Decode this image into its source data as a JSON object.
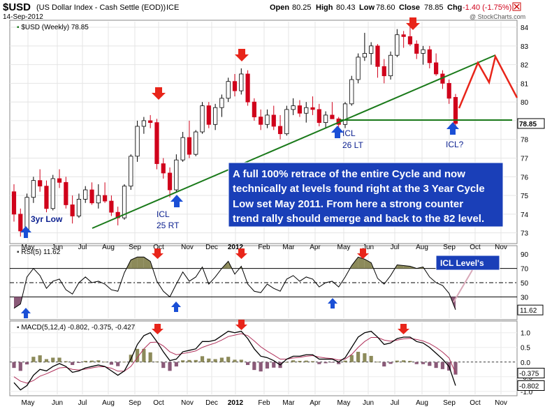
{
  "header": {
    "title": "$USD",
    "subtitle": "(US Dollar Index - Cash Settle (EOD))",
    "exchange": "ICE",
    "date": "14-Sep-2012",
    "open_label": "Open",
    "open": "80.25",
    "high_label": "High",
    "high": "80.43",
    "low_label": "Low",
    "low": "78.60",
    "close_label": "Close",
    "close": "78.85",
    "chg_label": "Chg",
    "chg": "-1.40 (-1.75%)",
    "watermark": "@ StockCharts.com"
  },
  "colors": {
    "up": "#ffffff",
    "down": "#d0021b",
    "outline": "#000000",
    "trend": "#1a7a1a",
    "arrow_down": "#e8251a",
    "arrow_up": "#1a4fd6",
    "forecast": "#e8251a",
    "note_bg": "#1a3fb8",
    "hist_pos": "#8c8a5a",
    "hist_neg": "#8a5a78"
  },
  "chart_data": [
    {
      "type": "candlestick",
      "title": "$USD (Weekly) 78.85",
      "ylim": [
        72.5,
        84.3
      ],
      "y_ticks": [
        "73",
        "74",
        "75",
        "76",
        "77",
        "78",
        "79",
        "80",
        "81",
        "82",
        "83",
        "84"
      ],
      "last_value_label": "78.85",
      "x_labels": [
        "May",
        "Jun",
        "Jul",
        "Aug",
        "Sep",
        "Oct",
        "Nov",
        "Dec",
        "2012",
        "Feb",
        "Mar",
        "Apr",
        "May",
        "Jun",
        "Jul",
        "Aug",
        "Sep",
        "Oct",
        "Nov"
      ],
      "ohlc": [
        [
          75.2,
          75.6,
          73.6,
          74.0
        ],
        [
          74.0,
          74.3,
          72.8,
          73.1
        ],
        [
          73.1,
          75.1,
          73.0,
          74.9
        ],
        [
          74.9,
          76.0,
          74.6,
          75.8
        ],
        [
          75.8,
          76.4,
          75.2,
          75.5
        ],
        [
          75.5,
          75.8,
          74.1,
          74.3
        ],
        [
          74.3,
          76.1,
          74.2,
          75.9
        ],
        [
          75.9,
          76.4,
          75.4,
          75.7
        ],
        [
          75.7,
          76.0,
          74.3,
          74.5
        ],
        [
          74.5,
          75.0,
          73.5,
          73.9
        ],
        [
          73.9,
          75.1,
          73.8,
          74.8
        ],
        [
          74.8,
          75.5,
          74.6,
          75.3
        ],
        [
          75.3,
          75.7,
          74.5,
          74.6
        ],
        [
          74.6,
          75.6,
          74.3,
          75.0
        ],
        [
          75.0,
          75.7,
          74.6,
          74.7
        ],
        [
          74.7,
          75.0,
          73.9,
          74.1
        ],
        [
          74.1,
          74.4,
          73.4,
          73.8
        ],
        [
          73.8,
          75.6,
          73.7,
          75.5
        ],
        [
          75.5,
          77.2,
          75.3,
          77.1
        ],
        [
          77.1,
          79.0,
          76.8,
          78.7
        ],
        [
          78.7,
          79.2,
          78.3,
          79.0
        ],
        [
          79.0,
          79.3,
          78.6,
          78.9
        ],
        [
          78.9,
          79.1,
          76.4,
          76.7
        ],
        [
          76.7,
          77.0,
          75.9,
          76.2
        ],
        [
          76.2,
          76.5,
          74.9,
          75.3
        ],
        [
          75.3,
          77.2,
          75.2,
          76.9
        ],
        [
          76.9,
          78.4,
          76.8,
          78.1
        ],
        [
          78.1,
          79.0,
          77.0,
          77.2
        ],
        [
          77.2,
          78.5,
          77.1,
          78.4
        ],
        [
          78.4,
          80.0,
          78.3,
          79.8
        ],
        [
          79.8,
          80.0,
          78.6,
          78.8
        ],
        [
          78.8,
          79.9,
          78.5,
          79.7
        ],
        [
          79.7,
          80.4,
          79.2,
          80.2
        ],
        [
          80.2,
          81.3,
          80.0,
          81.1
        ],
        [
          81.1,
          81.5,
          80.3,
          80.6
        ],
        [
          80.6,
          81.8,
          80.4,
          81.5
        ],
        [
          81.5,
          81.7,
          79.8,
          80.0
        ],
        [
          80.0,
          80.2,
          79.0,
          79.2
        ],
        [
          79.2,
          79.6,
          78.5,
          78.8
        ],
        [
          78.8,
          79.6,
          78.6,
          79.3
        ],
        [
          79.3,
          79.8,
          78.5,
          78.7
        ],
        [
          78.7,
          79.3,
          78.0,
          78.3
        ],
        [
          78.3,
          79.8,
          78.2,
          79.6
        ],
        [
          79.6,
          80.2,
          79.3,
          79.8
        ],
        [
          79.8,
          80.1,
          79.2,
          79.4
        ],
        [
          79.4,
          80.0,
          78.9,
          79.7
        ],
        [
          79.7,
          80.3,
          79.3,
          79.6
        ],
        [
          79.6,
          79.9,
          78.7,
          78.9
        ],
        [
          78.9,
          79.5,
          78.6,
          79.3
        ],
        [
          79.3,
          80.0,
          79.1,
          79.1
        ],
        [
          79.1,
          79.2,
          78.5,
          78.8
        ],
        [
          78.8,
          80.0,
          78.6,
          79.9
        ],
        [
          79.9,
          81.4,
          79.8,
          81.2
        ],
        [
          81.2,
          82.6,
          81.0,
          82.4
        ],
        [
          82.4,
          83.7,
          82.2,
          82.6
        ],
        [
          82.6,
          83.2,
          82.0,
          83.0
        ],
        [
          83.0,
          83.1,
          81.3,
          81.9
        ],
        [
          81.9,
          82.3,
          81.0,
          81.4
        ],
        [
          81.4,
          82.7,
          81.2,
          82.5
        ],
        [
          82.5,
          83.9,
          82.4,
          83.6
        ],
        [
          83.6,
          83.8,
          82.9,
          83.5
        ],
        [
          83.5,
          84.1,
          83.0,
          83.1
        ],
        [
          83.1,
          83.3,
          82.3,
          82.6
        ],
        [
          82.6,
          83.0,
          82.0,
          82.8
        ],
        [
          82.8,
          83.0,
          81.8,
          82.1
        ],
        [
          82.1,
          82.6,
          81.4,
          81.5
        ],
        [
          81.5,
          81.7,
          80.7,
          81.0
        ],
        [
          81.0,
          81.2,
          79.9,
          80.2
        ],
        [
          80.25,
          80.43,
          78.6,
          78.85
        ]
      ]
    },
    {
      "type": "line",
      "title": "RSI(5) 11.62",
      "ylim": [
        0,
        100
      ],
      "y_ticks": [
        "30",
        "50",
        "70",
        "90"
      ],
      "reference_lines": [
        30,
        50,
        70
      ],
      "last_value_label": "11.62",
      "values": [
        14,
        20,
        58,
        70,
        60,
        42,
        52,
        55,
        40,
        34,
        50,
        58,
        50,
        52,
        48,
        40,
        38,
        64,
        82,
        86,
        86,
        80,
        52,
        38,
        30,
        48,
        65,
        52,
        58,
        72,
        48,
        58,
        70,
        80,
        62,
        73,
        48,
        38,
        36,
        48,
        42,
        38,
        55,
        60,
        52,
        58,
        55,
        44,
        50,
        52,
        44,
        58,
        74,
        86,
        83,
        78,
        56,
        48,
        60,
        75,
        74,
        73,
        70,
        72,
        58,
        50,
        46,
        35,
        12
      ]
    },
    {
      "type": "line",
      "title": "MACD(5,12,4) -0.802, -0.375, -0.427",
      "ylim": [
        -1.1,
        1.35
      ],
      "y_ticks": [
        "-1.0",
        "-0.5",
        "0.0",
        "0.5",
        "1.0"
      ],
      "last_value_labels": [
        "-0.375",
        "-0.802"
      ],
      "series": [
        {
          "name": "MACD",
          "values": [
            -0.7,
            -0.95,
            -0.8,
            -0.45,
            -0.25,
            -0.3,
            -0.15,
            -0.05,
            -0.15,
            -0.35,
            -0.3,
            -0.2,
            -0.15,
            -0.1,
            -0.15,
            -0.3,
            -0.45,
            -0.3,
            0.1,
            0.6,
            0.9,
            1.0,
            0.7,
            0.35,
            0.05,
            0.1,
            0.35,
            0.4,
            0.45,
            0.7,
            0.7,
            0.75,
            0.9,
            1.05,
            1.0,
            1.05,
            0.8,
            0.45,
            0.2,
            0.15,
            0.05,
            -0.1,
            0.1,
            0.2,
            0.2,
            0.25,
            0.25,
            0.1,
            0.1,
            0.1,
            0.0,
            0.15,
            0.5,
            0.85,
            1.0,
            1.05,
            0.85,
            0.6,
            0.65,
            0.8,
            0.85,
            0.85,
            0.7,
            0.65,
            0.5,
            0.3,
            0.1,
            -0.15,
            -0.802
          ]
        },
        {
          "name": "Signal",
          "values": [
            -0.5,
            -0.65,
            -0.72,
            -0.63,
            -0.48,
            -0.4,
            -0.3,
            -0.2,
            -0.18,
            -0.25,
            -0.27,
            -0.24,
            -0.2,
            -0.16,
            -0.16,
            -0.21,
            -0.31,
            -0.31,
            -0.15,
            0.15,
            0.45,
            0.67,
            0.68,
            0.55,
            0.35,
            0.25,
            0.29,
            0.33,
            0.38,
            0.5,
            0.58,
            0.65,
            0.75,
            0.87,
            0.92,
            0.97,
            0.9,
            0.72,
            0.52,
            0.37,
            0.24,
            0.1,
            0.1,
            0.14,
            0.16,
            0.2,
            0.22,
            0.17,
            0.14,
            0.12,
            0.07,
            0.1,
            0.26,
            0.5,
            0.7,
            0.84,
            0.84,
            0.75,
            0.71,
            0.75,
            0.79,
            0.81,
            0.77,
            0.72,
            0.63,
            0.5,
            0.34,
            0.14,
            -0.375
          ]
        }
      ],
      "histogram": [
        -0.2,
        -0.3,
        -0.08,
        0.18,
        0.23,
        0.1,
        0.15,
        0.15,
        0.03,
        -0.1,
        -0.03,
        0.04,
        0.05,
        0.06,
        0.01,
        -0.09,
        -0.14,
        0.01,
        0.25,
        0.45,
        0.45,
        0.33,
        0.02,
        -0.2,
        -0.3,
        -0.15,
        0.06,
        0.07,
        0.07,
        0.2,
        0.12,
        0.1,
        0.15,
        0.18,
        0.08,
        0.08,
        -0.1,
        -0.27,
        -0.32,
        -0.22,
        -0.19,
        -0.2,
        0.0,
        0.06,
        0.04,
        0.05,
        0.03,
        -0.07,
        -0.04,
        -0.02,
        -0.07,
        0.05,
        0.24,
        0.35,
        0.3,
        0.21,
        0.01,
        -0.15,
        -0.06,
        0.05,
        0.06,
        0.04,
        -0.07,
        -0.07,
        -0.13,
        -0.2,
        -0.24,
        -0.29,
        -0.427
      ]
    }
  ],
  "annotations": {
    "note": [
      "A full 100% retrace of the entire Cycle and now",
      "technically at levels found right at the 3 Year Cycle",
      "Low set May 2011.  From here a strong counter",
      "trend rally should emerge and back to the 82 level."
    ],
    "low_3yr": "3yr Low",
    "icl_25": [
      "ICL",
      "25 RT"
    ],
    "icl_26": [
      "ICL",
      "26 LT"
    ],
    "icl_q": "ICL?",
    "icl_levels": "ICL Level's"
  }
}
